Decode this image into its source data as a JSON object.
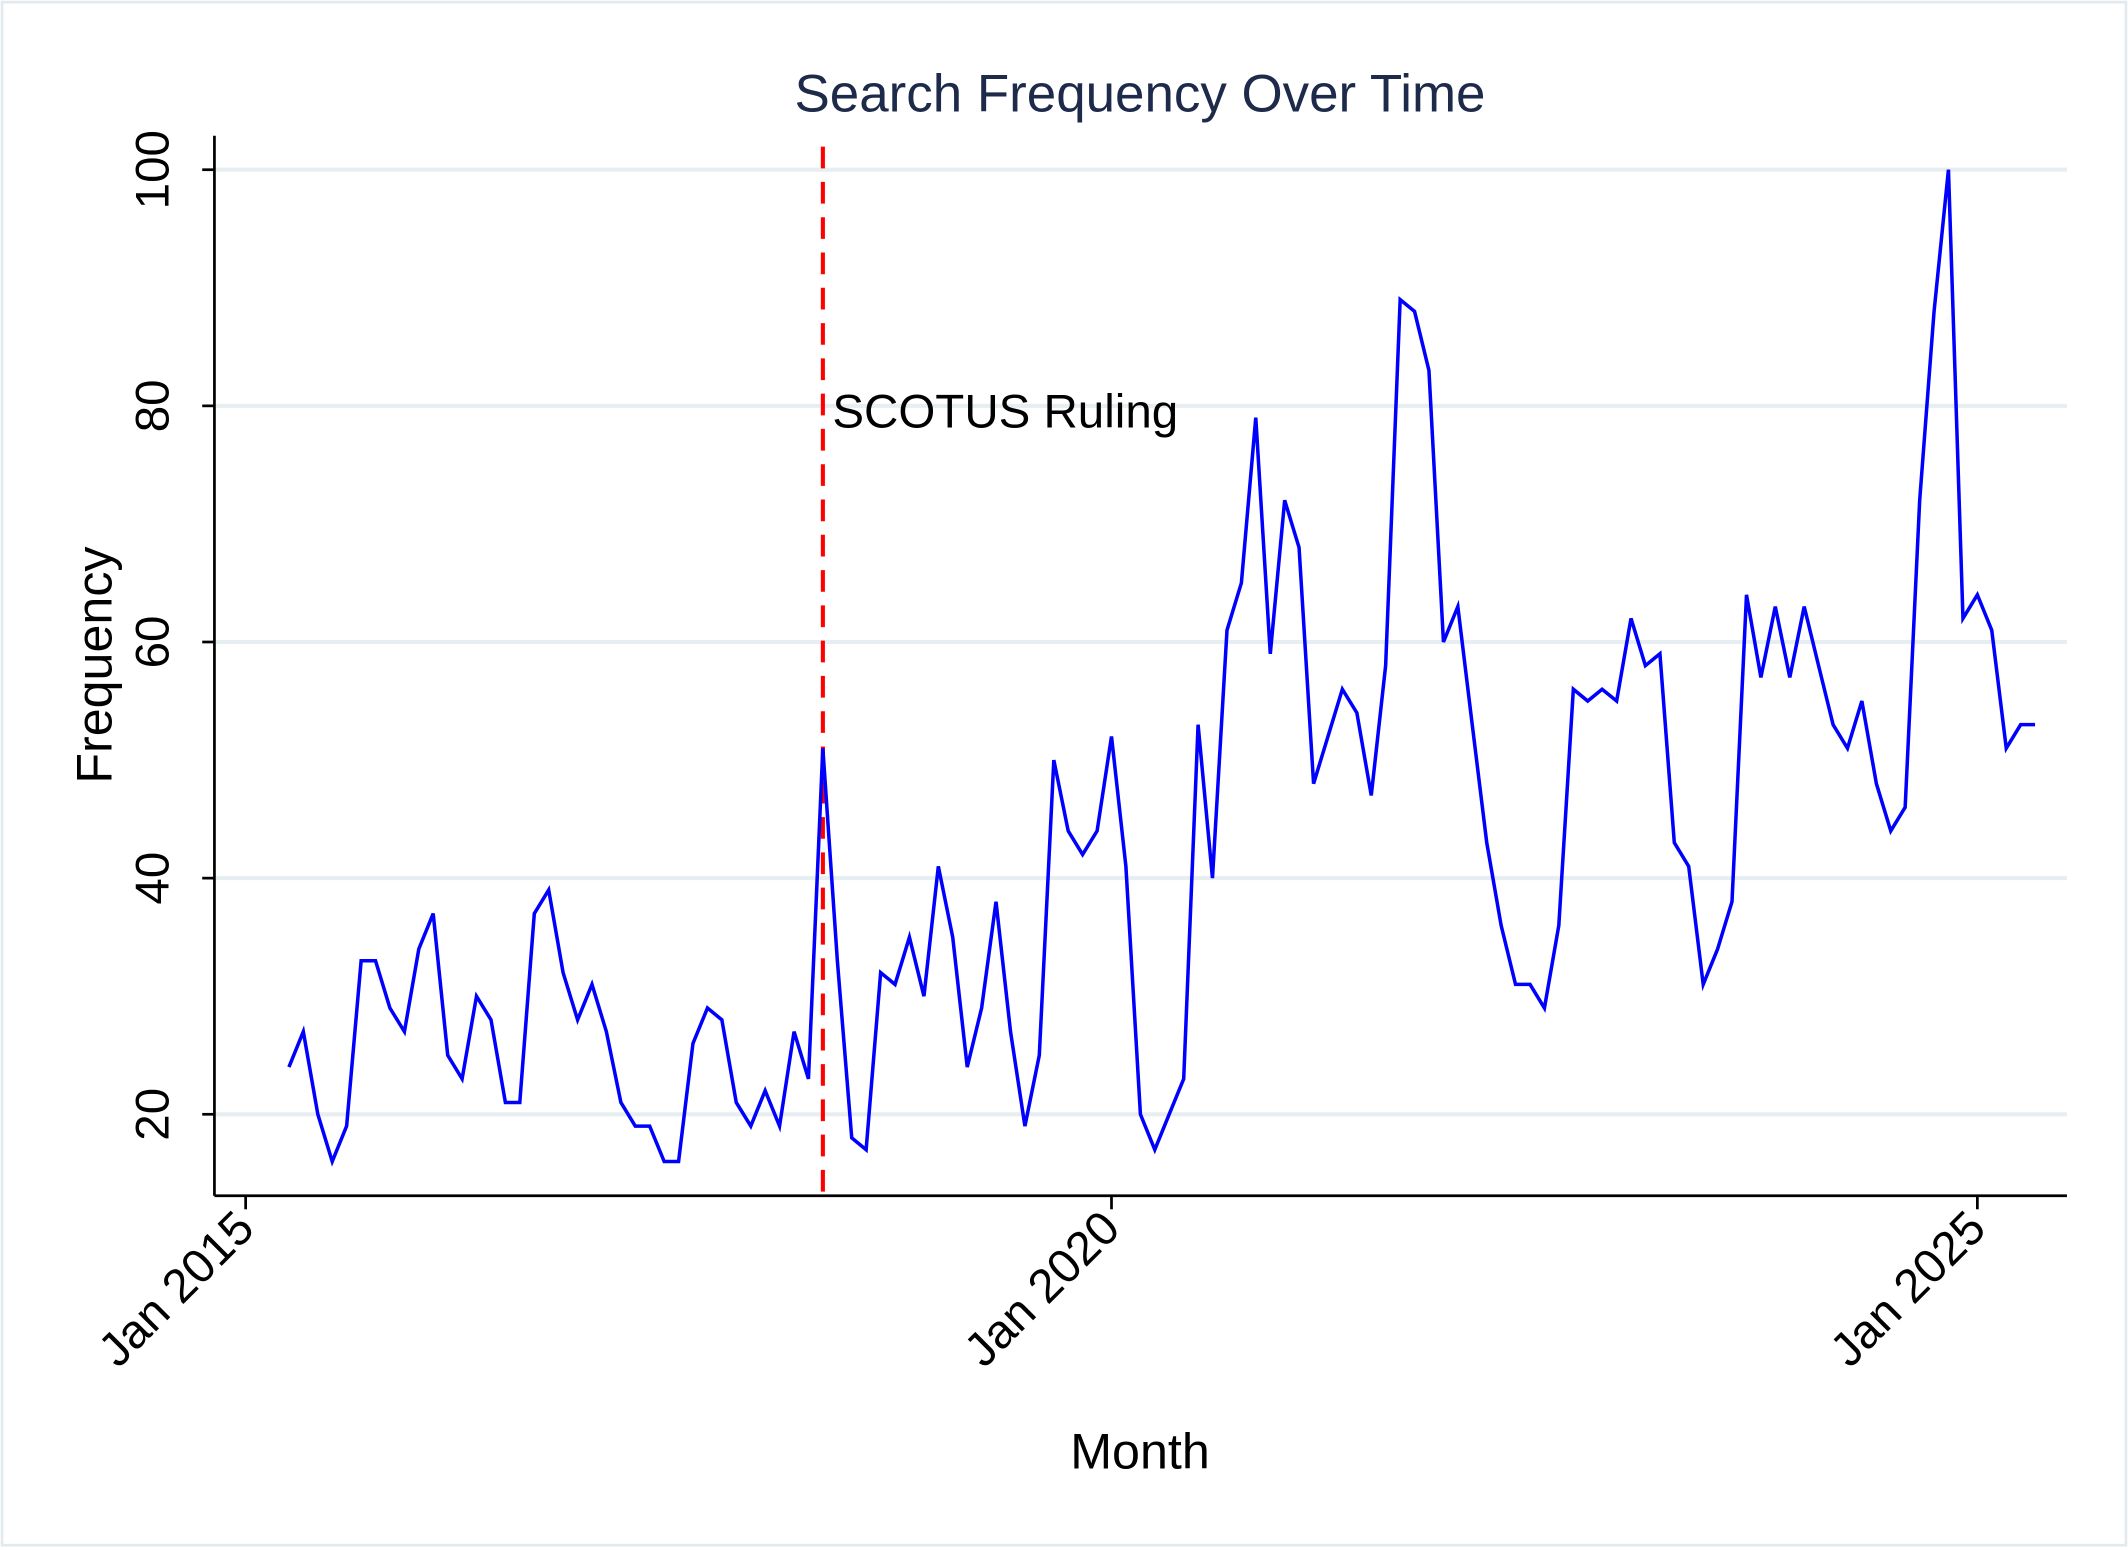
{
  "chart_data": {
    "type": "line",
    "title": "Search Frequency Over Time",
    "xlabel": "Month",
    "ylabel": "Frequency",
    "x_start": "Apr 2015",
    "x_frequency": "monthly",
    "x_ticks": [
      "Jan 2015",
      "Jan 2020",
      "Jan 2025"
    ],
    "y_ticks": [
      20,
      40,
      60,
      80,
      100
    ],
    "ylim": [
      13,
      102
    ],
    "grid": "horizontal",
    "line_color": "#0000ff",
    "values": [
      24,
      27,
      20,
      16,
      19,
      33,
      33,
      29,
      27,
      34,
      37,
      25,
      23,
      30,
      28,
      21,
      21,
      37,
      39,
      32,
      28,
      31,
      27,
      21,
      19,
      19,
      16,
      16,
      26,
      29,
      28,
      21,
      19,
      22,
      19,
      27,
      23,
      51,
      33,
      18,
      17,
      32,
      31,
      35,
      30,
      41,
      35,
      24,
      29,
      38,
      27,
      19,
      25,
      50,
      44,
      42,
      44,
      52,
      41,
      20,
      17,
      20,
      23,
      53,
      40,
      61,
      65,
      79,
      59,
      72,
      68,
      48,
      52,
      56,
      54,
      47,
      58,
      89,
      88,
      83,
      60,
      63,
      53,
      43,
      36,
      31,
      31,
      29,
      36,
      56,
      55,
      56,
      55,
      62,
      58,
      59,
      43,
      41,
      31,
      34,
      38,
      64,
      57,
      63,
      57,
      63,
      58,
      53,
      51,
      55,
      48,
      44,
      46,
      72,
      88,
      100,
      62,
      64,
      61,
      51,
      53,
      53
    ],
    "annotations": [
      {
        "type": "vertical-line",
        "x": "May 2018",
        "style": "dashed",
        "color": "#ff0000",
        "label": "SCOTUS Ruling"
      }
    ]
  }
}
